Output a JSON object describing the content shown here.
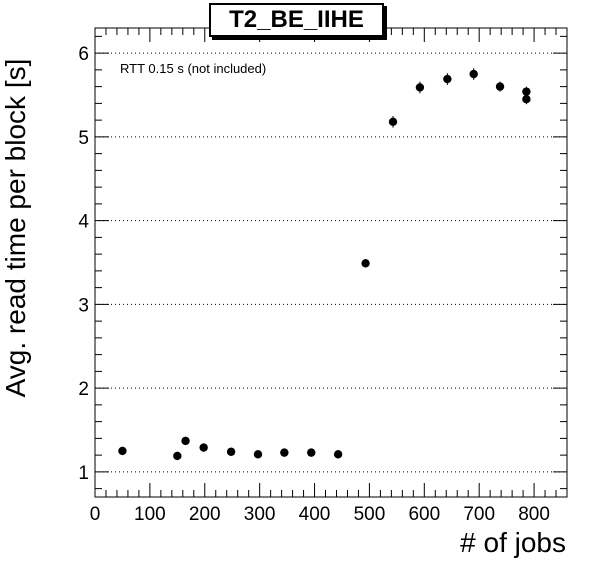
{
  "chart_data": {
    "type": "scatter",
    "title": "T2_BE_IIHE",
    "annotation": "RTT 0.15 s (not included)",
    "xlabel": "# of jobs",
    "ylabel": "Avg. read time per block [s]",
    "xlim": [
      0,
      860
    ],
    "ylim": [
      0.7,
      6.3
    ],
    "xticks": [
      0,
      100,
      200,
      300,
      400,
      500,
      600,
      700,
      800
    ],
    "yticks": [
      1,
      2,
      3,
      4,
      5,
      6
    ],
    "grid": "horizontal-dotted",
    "series": [
      {
        "points": [
          {
            "x": 50,
            "y": 1.25,
            "err": 0.05
          },
          {
            "x": 150,
            "y": 1.19,
            "err": 0.05
          },
          {
            "x": 165,
            "y": 1.37,
            "err": 0.05
          },
          {
            "x": 198,
            "y": 1.29,
            "err": 0.05
          },
          {
            "x": 248,
            "y": 1.24,
            "err": 0.05
          },
          {
            "x": 297,
            "y": 1.21,
            "err": 0.05
          },
          {
            "x": 345,
            "y": 1.23,
            "err": 0.05
          },
          {
            "x": 394,
            "y": 1.23,
            "err": 0.05
          },
          {
            "x": 443,
            "y": 1.21,
            "err": 0.05
          },
          {
            "x": 493,
            "y": 3.49,
            "err": 0.05
          },
          {
            "x": 543,
            "y": 5.18,
            "err": 0.07
          },
          {
            "x": 592,
            "y": 5.59,
            "err": 0.07
          },
          {
            "x": 642,
            "y": 5.69,
            "err": 0.07
          },
          {
            "x": 690,
            "y": 5.75,
            "err": 0.07
          },
          {
            "x": 738,
            "y": 5.6,
            "err": 0.06
          },
          {
            "x": 786,
            "y": 5.54,
            "err": 0.06
          },
          {
            "x": 786,
            "y": 5.45,
            "err": 0.06
          }
        ]
      }
    ]
  }
}
